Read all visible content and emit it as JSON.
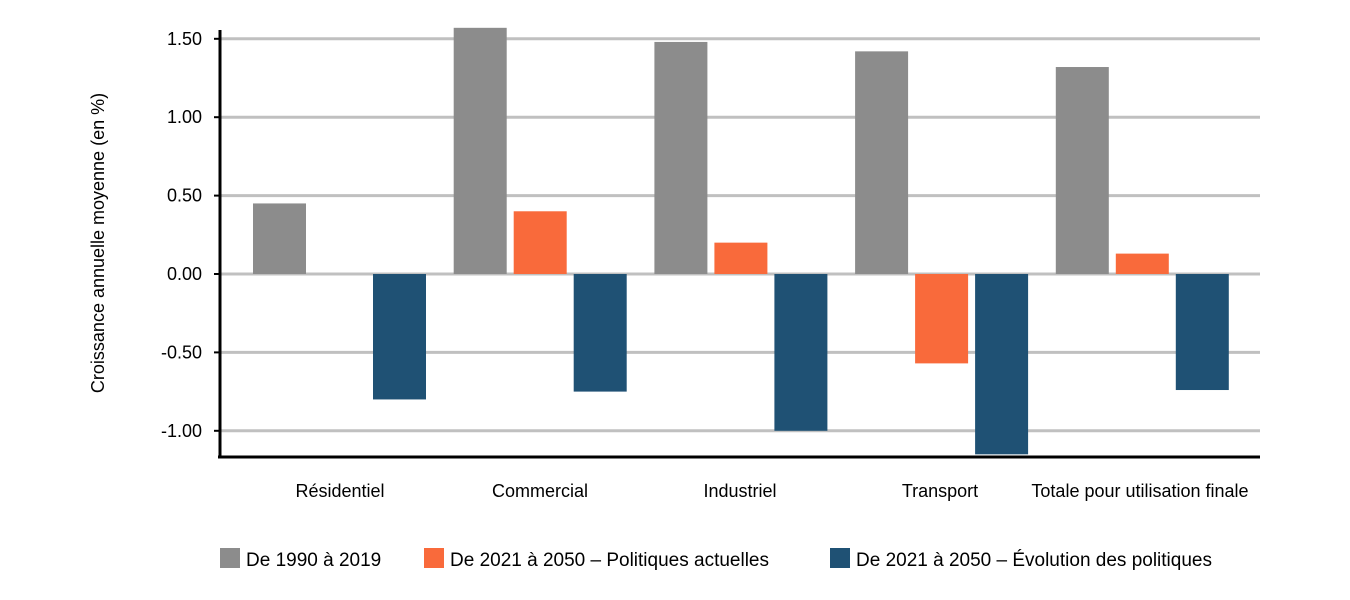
{
  "chart_data": {
    "type": "bar",
    "title": "",
    "xlabel": "",
    "ylabel": "Croissance annuelle moyenne (en %)",
    "ylim": [
      -1.15,
      1.6
    ],
    "yticks": [
      -1.0,
      -0.5,
      0.0,
      0.5,
      1.0,
      1.5
    ],
    "ytick_labels": [
      "-1.00",
      "-0.50",
      "0.00",
      "0.50",
      "1.00",
      "1.50"
    ],
    "grid": true,
    "legend_position": "bottom",
    "categories": [
      "Résidentiel",
      "Commercial",
      "Industriel",
      "Transport",
      "Totale pour utilisation finale"
    ],
    "series": [
      {
        "name": "De 1990 à 2019",
        "color": "#8c8c8c",
        "values": [
          0.45,
          1.57,
          1.48,
          1.42,
          1.32
        ]
      },
      {
        "name": "De 2021 à 2050 – Politiques actuelles",
        "color": "#f96a3b",
        "values": [
          0.0,
          0.4,
          0.2,
          -0.57,
          0.13
        ]
      },
      {
        "name": "De 2021 à 2050 – Évolution des politiques",
        "color": "#1f5174",
        "values": [
          -0.8,
          -0.75,
          -1.0,
          -1.15,
          -0.74
        ]
      }
    ]
  }
}
